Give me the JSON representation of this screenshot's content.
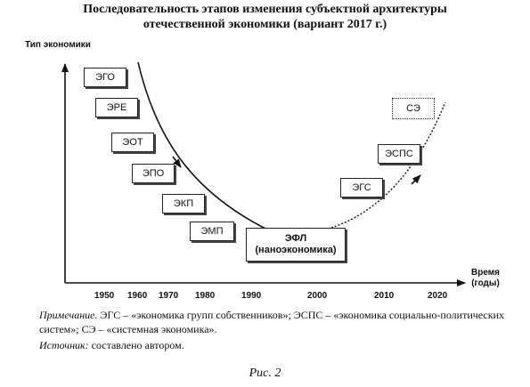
{
  "title": {
    "line1": "Последовательность этапов изменения субъектной архитектуры",
    "line2": "отечественной экономики (вариант 2017 г.)"
  },
  "axes": {
    "y_label": "Тип экономики",
    "x_label_line1": "Время",
    "x_label_line2": "(годы)"
  },
  "years": [
    "1950",
    "1960",
    "1970",
    "1980",
    "1990",
    "2000",
    "2010",
    "2020"
  ],
  "boxes": {
    "ego": "ЭГО",
    "ere": "ЭРЕ",
    "eot": "ЭОТ",
    "epo": "ЭПО",
    "ekp": "ЭКП",
    "emp": "ЭМП",
    "efl_line1": "ЭФЛ",
    "efl_line2": "(наноэкономика)",
    "egs": "ЭГС",
    "esps": "ЭСПС",
    "se": "СЭ"
  },
  "note": {
    "label": "Примечание.",
    "text": "ЭГС – «экономика групп собственников»; ЭСПС – «экономика социально-политических систем»; СЭ – «системная экономика».",
    "source_label": "Источник:",
    "source_text": "составлено автором."
  },
  "figure_caption": "Рис. 2"
}
